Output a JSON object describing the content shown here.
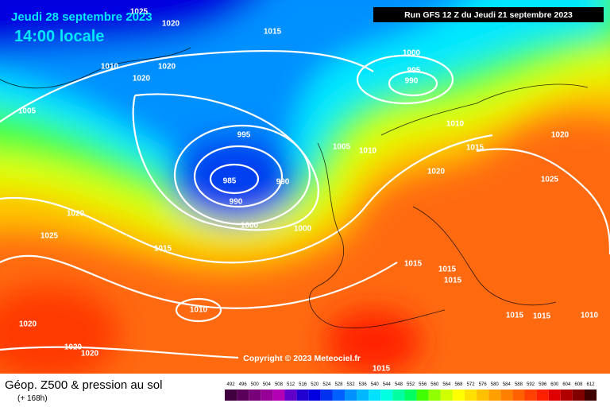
{
  "header": {
    "date": "Jeudi 28 septembre 2023",
    "time": "14:00 locale",
    "run": "Run GFS 12 Z du Jeudi 21 septembre 2023"
  },
  "copyright": "Copyright © 2023 Meteociel.fr",
  "footer": {
    "title": "Géop. Z500 & pression au sol",
    "lead": "(+ 168h)"
  },
  "isobars": [
    1025,
    1020,
    1015,
    1010,
    1020,
    1020,
    1005,
    1000,
    995,
    990,
    995,
    985,
    990,
    990,
    1000,
    1000,
    1005,
    1010,
    1010,
    1015,
    1020,
    1020,
    1025,
    1020,
    1025,
    1015,
    1015,
    1015,
    1015,
    1010,
    1015,
    1015,
    1010,
    1020,
    1020,
    1020,
    1015
  ],
  "legend": {
    "labels": [
      492,
      496,
      500,
      504,
      508,
      512,
      516,
      520,
      524,
      528,
      532,
      536,
      540,
      544,
      548,
      552,
      556,
      560,
      564,
      568,
      572,
      576,
      580,
      584,
      588,
      592,
      596,
      600,
      604,
      608,
      612
    ],
    "colors": [
      "#400040",
      "#5a005a",
      "#780078",
      "#960096",
      "#b400b4",
      "#6000c8",
      "#2000d0",
      "#0000e0",
      "#0030f0",
      "#0060ff",
      "#0090ff",
      "#00b8ff",
      "#00e0ff",
      "#00ffe0",
      "#00ffa0",
      "#00ff60",
      "#40ff00",
      "#90ff00",
      "#d0ff00",
      "#ffff00",
      "#ffe000",
      "#ffc000",
      "#ffa000",
      "#ff8000",
      "#ff6000",
      "#ff4000",
      "#ff2000",
      "#e00000",
      "#b00000",
      "#800000",
      "#400000"
    ]
  }
}
